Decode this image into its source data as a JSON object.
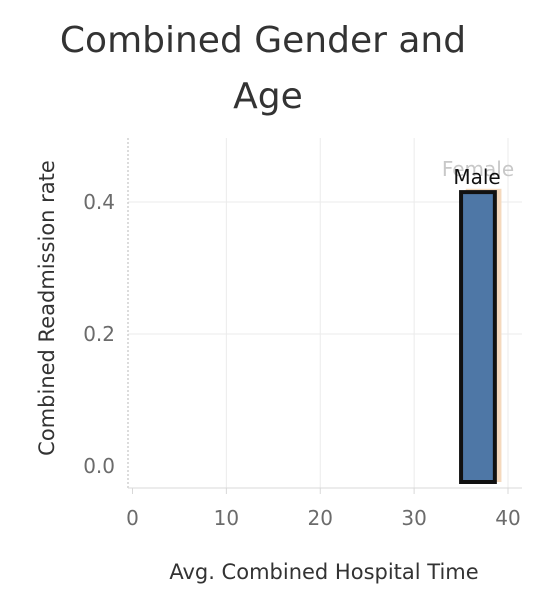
{
  "chart_data": {
    "type": "bar",
    "title": "Combined Gender and Age",
    "title_lines": [
      "Combined Gender and",
      "Age"
    ],
    "xlabel": "Avg. Combined Hospital Time",
    "ylabel": "Combined Readmission rate",
    "xlim": [
      0,
      40
    ],
    "ylim": [
      0,
      0.45
    ],
    "x_ticks": [
      "0",
      "10",
      "20",
      "30",
      "40"
    ],
    "y_ticks": [
      "0.0",
      "0.2",
      "0.4"
    ],
    "grid": true,
    "series": [
      {
        "name": "Female",
        "x_start": 35.5,
        "x_end": 39.3,
        "value": 0.42,
        "color": "#f5d9bd",
        "label_color": "#c8c8c8"
      },
      {
        "name": "Male",
        "x_start": 35,
        "x_end": 38.6,
        "value": 0.415,
        "color": "#4e77a6",
        "label_color": "#111111"
      }
    ]
  }
}
